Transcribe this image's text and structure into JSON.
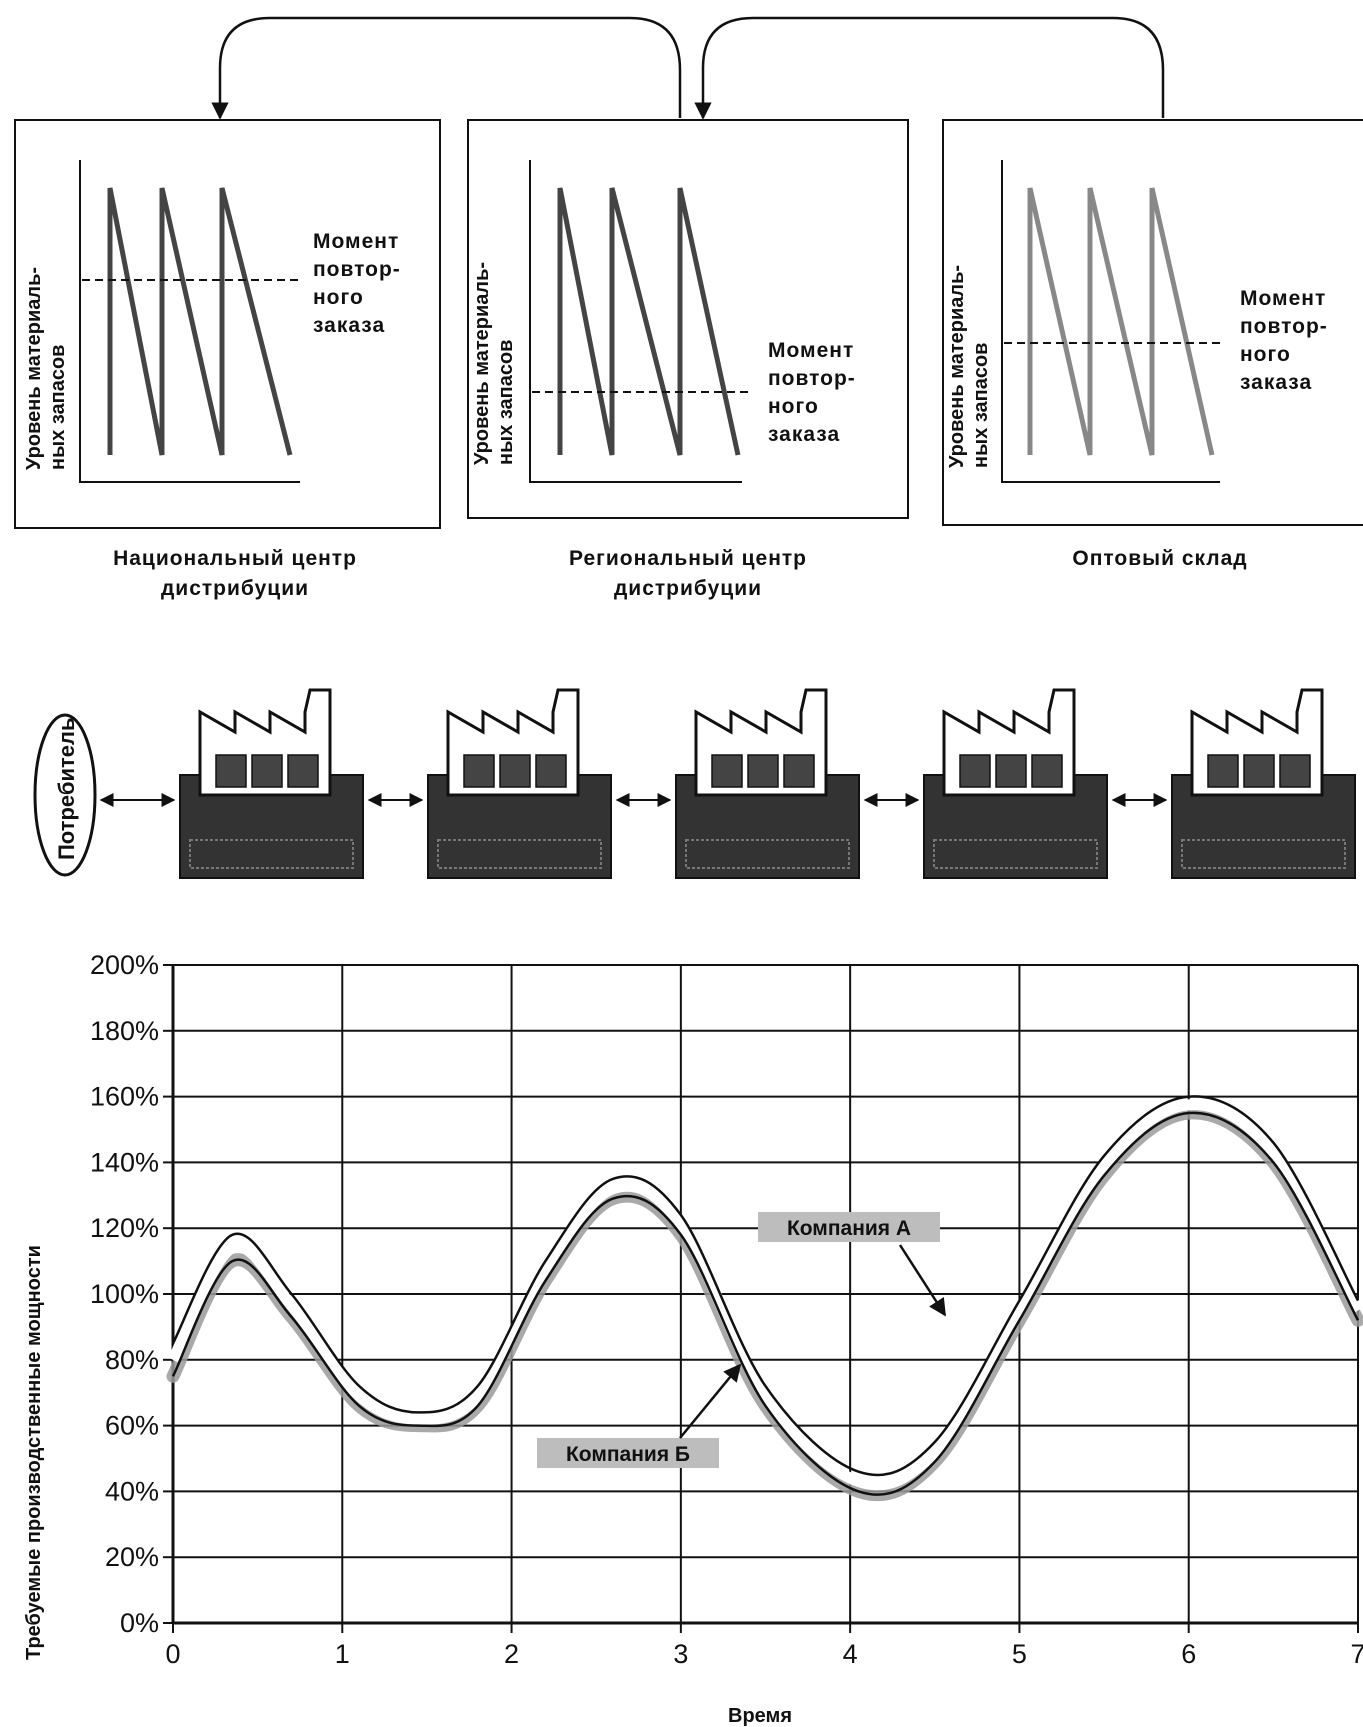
{
  "panels": [
    {
      "ylabel_1": "Уровень материаль-",
      "ylabel_2": "ных запасов",
      "note": [
        "Момент",
        "повтор-",
        "ного",
        "заказа"
      ],
      "caption": [
        "Национальный центр",
        "дистрибуции"
      ]
    },
    {
      "ylabel_1": "Уровень материаль-",
      "ylabel_2": "ных запасов",
      "note": [
        "Момент",
        "повтор-",
        "ного",
        "заказа"
      ],
      "caption": [
        "Региональный центр",
        "дистрибуции"
      ]
    },
    {
      "ylabel_1": "Уровень материаль-",
      "ylabel_2": "ных запасов",
      "note": [
        "Момент",
        "повтор-",
        "ного",
        "заказа"
      ],
      "caption": [
        "Оптовый склад"
      ]
    }
  ],
  "chain": {
    "consumer": "Потребитель",
    "companies_count": 5
  },
  "chart_data": {
    "type": "line",
    "xlabel": "Время",
    "ylabel": "Требуемые производственные мощности",
    "xlim": [
      0,
      7
    ],
    "ylim": [
      0,
      200
    ],
    "x_ticks": [
      "0",
      "1",
      "2",
      "3",
      "4",
      "5",
      "6",
      "7"
    ],
    "y_ticks": [
      "0%",
      "20%",
      "40%",
      "60%",
      "80%",
      "100%",
      "120%",
      "140%",
      "160%",
      "180%",
      "200%"
    ],
    "grid": true,
    "series": [
      {
        "name": "Компания А",
        "x": [
          0,
          0.35,
          0.7,
          1.1,
          1.45,
          1.8,
          2.2,
          2.6,
          3.0,
          3.5,
          4.05,
          4.5,
          5.0,
          5.5,
          6.0,
          6.5,
          7.0
        ],
        "y": [
          85,
          118,
          100,
          72,
          64,
          72,
          110,
          135,
          124,
          72,
          46,
          55,
          98,
          142,
          160,
          146,
          98
        ]
      },
      {
        "name": "Компания Б",
        "x": [
          0,
          0.35,
          0.7,
          1.1,
          1.45,
          1.8,
          2.2,
          2.6,
          3.0,
          3.5,
          4.05,
          4.5,
          5.0,
          5.5,
          6.0,
          6.5,
          7.0
        ],
        "y": [
          75,
          110,
          93,
          66,
          60,
          66,
          104,
          129,
          118,
          66,
          40,
          49,
          92,
          136,
          155,
          140,
          92
        ]
      }
    ],
    "annotations": [
      "Компания А",
      "Компания Б"
    ]
  }
}
